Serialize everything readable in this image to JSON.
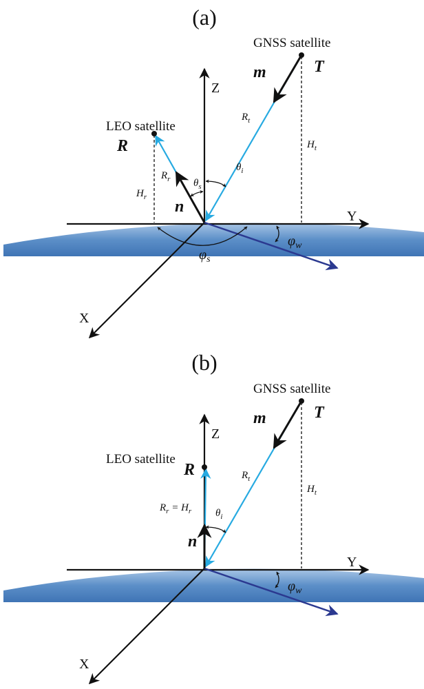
{
  "panels": [
    {
      "label": "(a)",
      "gnss_label": "GNSS satellite",
      "m": "m",
      "T": "T",
      "Z": "Z",
      "leo_label": "LEO satellite",
      "R": "R",
      "Rt": {
        "base": "R",
        "sub": "t"
      },
      "theta_i": {
        "base": "θ",
        "sub": "i"
      },
      "theta_s": {
        "base": "θ",
        "sub": "s"
      },
      "Rr": {
        "base": "R",
        "sub": "r"
      },
      "Ht": {
        "base": "H",
        "sub": "t"
      },
      "Hr": {
        "base": "H",
        "sub": "r"
      },
      "n": "n",
      "Y": "Y",
      "phi_w": {
        "base": "φ",
        "sub": "w"
      },
      "phi_s": {
        "base": "φ",
        "sub": "s"
      },
      "X": "X"
    },
    {
      "label": "(b)",
      "gnss_label": "GNSS satellite",
      "m": "m",
      "T": "T",
      "Z": "Z",
      "leo_label": "LEO satellite",
      "R": "R",
      "Rr_eq": {
        "base": "R",
        "sub": "r",
        "base2": " = H",
        "sub2": "r"
      },
      "Rt": {
        "base": "R",
        "sub": "t"
      },
      "theta_i": {
        "base": "θ",
        "sub": "i"
      },
      "Ht": {
        "base": "H",
        "sub": "t"
      },
      "n": "n",
      "Y": "Y",
      "phi_w": {
        "base": "φ",
        "sub": "w"
      },
      "X": "X"
    }
  ]
}
